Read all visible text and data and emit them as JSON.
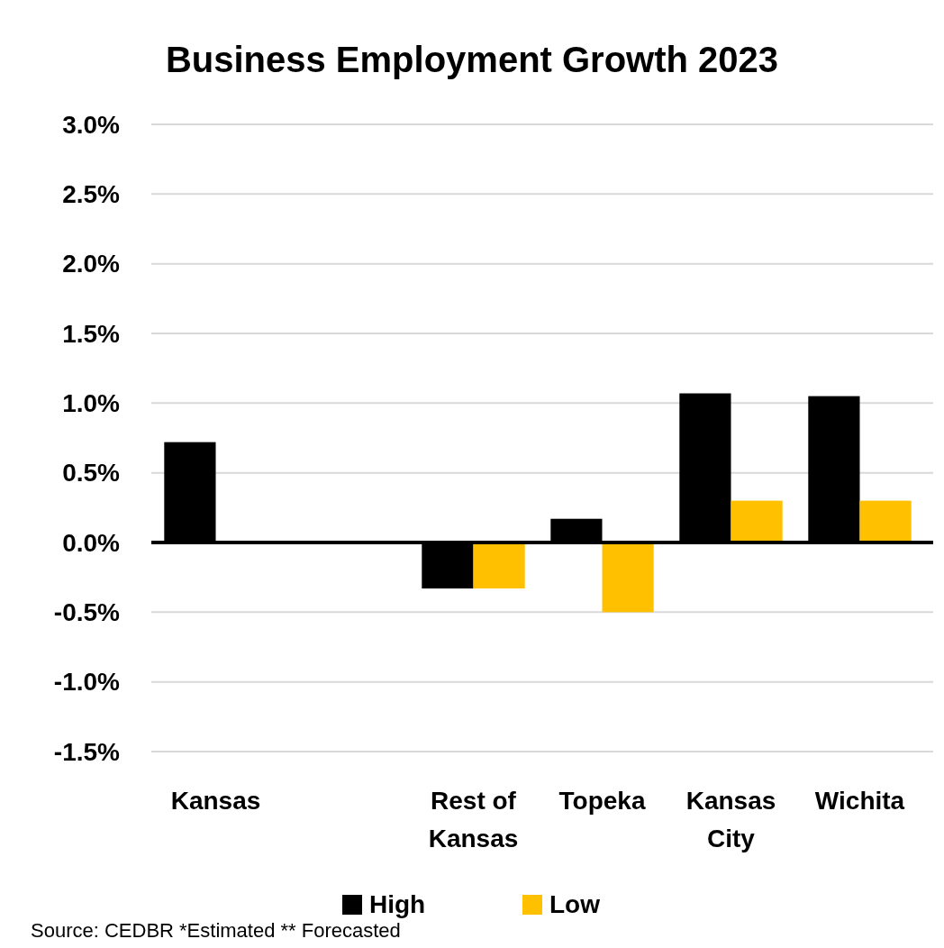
{
  "chart_data": {
    "type": "bar",
    "title": "Business Employment Growth 2023",
    "categories": [
      "Kansas",
      null,
      "Rest of Kansas",
      "Topeka",
      "Kansas City",
      "Wichita"
    ],
    "series": [
      {
        "name": "High",
        "color": "#000000",
        "values": [
          0.72,
          null,
          -0.33,
          0.17,
          1.07,
          1.05
        ]
      },
      {
        "name": "Low",
        "color": "#ffc000",
        "values": [
          null,
          null,
          -0.33,
          -0.5,
          0.3,
          0.3
        ]
      }
    ],
    "ylim": [
      -1.5,
      3.0
    ],
    "yticks": [
      {
        "value": -1.5,
        "label": "-1.5%"
      },
      {
        "value": -1,
        "label": "-1.0%"
      },
      {
        "value": -0.5,
        "label": "-0.5%"
      },
      {
        "value": 0,
        "label": "0.0%"
      },
      {
        "value": 0.5,
        "label": "0.5%"
      },
      {
        "value": 1,
        "label": "1.0%"
      },
      {
        "value": 1.5,
        "label": "1.5%"
      },
      {
        "value": 2,
        "label": "2.0%"
      },
      {
        "value": 2.5,
        "label": "2.5%"
      },
      {
        "value": 3,
        "label": "3.0%"
      }
    ],
    "grid": "y",
    "legend": "bottom",
    "annotations": [
      "Source: CEDBR *Estimated ** Forecasted"
    ]
  }
}
